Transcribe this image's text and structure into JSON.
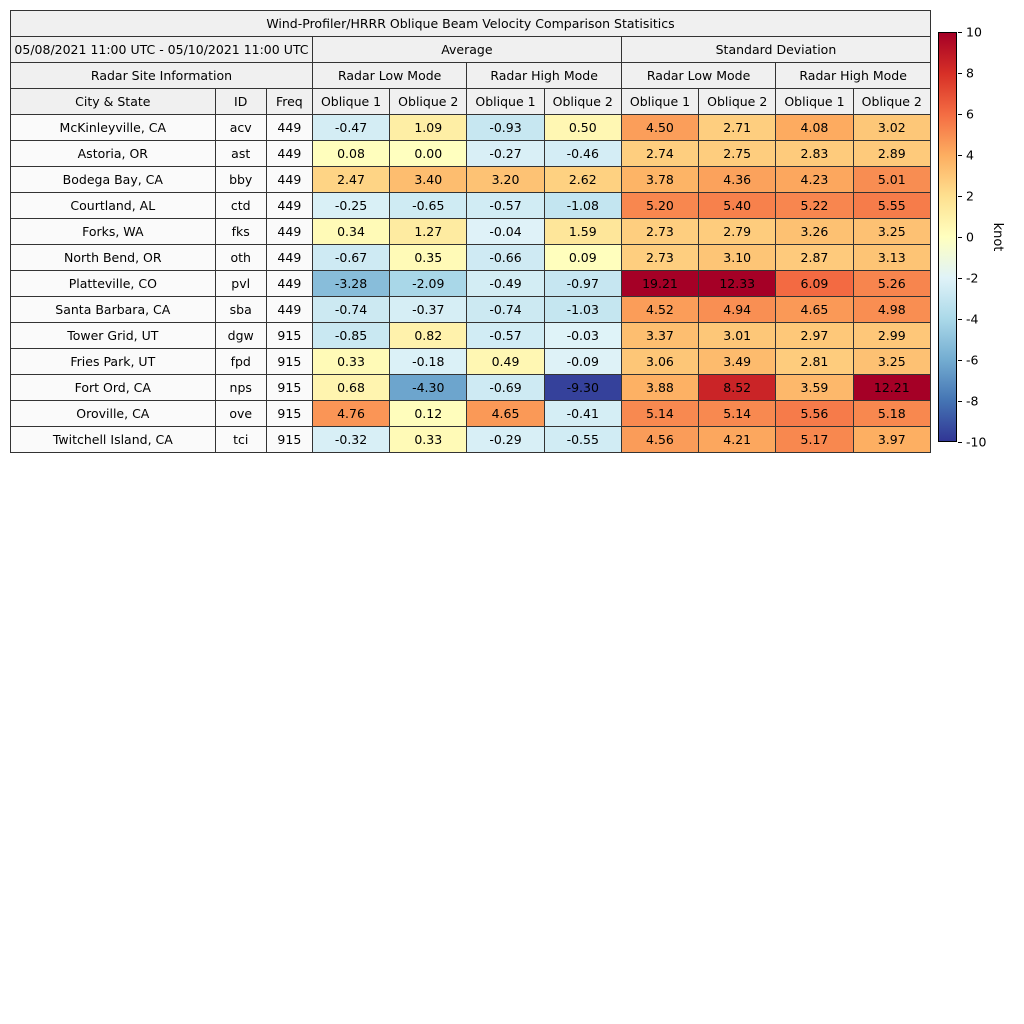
{
  "chart_data": {
    "type": "table",
    "title": "Wind-Profiler/HRRR Oblique Beam Velocity Comparison Statisitics",
    "period": "05/08/2021 11:00 UTC - 05/10/2021 11:00 UTC",
    "site_info_header": "Radar Site Information",
    "group_headers": [
      "Average",
      "Standard Deviation"
    ],
    "subgroup_headers": [
      "Radar Low Mode",
      "Radar High Mode",
      "Radar Low Mode",
      "Radar High Mode"
    ],
    "columns": [
      "City & State",
      "ID",
      "Freq",
      "Oblique 1",
      "Oblique 2",
      "Oblique 1",
      "Oblique 2",
      "Oblique 1",
      "Oblique 2",
      "Oblique 1",
      "Oblique 2"
    ],
    "rows": [
      {
        "city": "McKinleyville, CA",
        "id": "acv",
        "freq": "449",
        "values": [
          -0.47,
          1.09,
          -0.93,
          0.5,
          4.5,
          2.71,
          4.08,
          3.02
        ]
      },
      {
        "city": "Astoria, OR",
        "id": "ast",
        "freq": "449",
        "values": [
          0.08,
          0.0,
          -0.27,
          -0.46,
          2.74,
          2.75,
          2.83,
          2.89
        ]
      },
      {
        "city": "Bodega Bay, CA",
        "id": "bby",
        "freq": "449",
        "values": [
          2.47,
          3.4,
          3.2,
          2.62,
          3.78,
          4.36,
          4.23,
          5.01
        ]
      },
      {
        "city": "Courtland, AL",
        "id": "ctd",
        "freq": "449",
        "values": [
          -0.25,
          -0.65,
          -0.57,
          -1.08,
          5.2,
          5.4,
          5.22,
          5.55
        ]
      },
      {
        "city": "Forks, WA",
        "id": "fks",
        "freq": "449",
        "values": [
          0.34,
          1.27,
          -0.04,
          1.59,
          2.73,
          2.79,
          3.26,
          3.25
        ]
      },
      {
        "city": "North Bend, OR",
        "id": "oth",
        "freq": "449",
        "values": [
          -0.67,
          0.35,
          -0.66,
          0.09,
          2.73,
          3.1,
          2.87,
          3.13
        ]
      },
      {
        "city": "Platteville, CO",
        "id": "pvl",
        "freq": "449",
        "values": [
          -3.28,
          -2.09,
          -0.49,
          -0.97,
          19.21,
          12.33,
          6.09,
          5.26
        ]
      },
      {
        "city": "Santa Barbara, CA",
        "id": "sba",
        "freq": "449",
        "values": [
          -0.74,
          -0.37,
          -0.74,
          -1.03,
          4.52,
          4.94,
          4.65,
          4.98
        ]
      },
      {
        "city": "Tower Grid, UT",
        "id": "dgw",
        "freq": "915",
        "values": [
          -0.85,
          0.82,
          -0.57,
          -0.03,
          3.37,
          3.01,
          2.97,
          2.99
        ]
      },
      {
        "city": "Fries Park, UT",
        "id": "fpd",
        "freq": "915",
        "values": [
          0.33,
          -0.18,
          0.49,
          -0.09,
          3.06,
          3.49,
          2.81,
          3.25
        ]
      },
      {
        "city": "Fort Ord, CA",
        "id": "nps",
        "freq": "915",
        "values": [
          0.68,
          -4.3,
          -0.69,
          -9.3,
          3.88,
          8.52,
          3.59,
          12.21
        ]
      },
      {
        "city": "Oroville, CA",
        "id": "ove",
        "freq": "915",
        "values": [
          4.76,
          0.12,
          4.65,
          -0.41,
          5.14,
          5.14,
          5.56,
          5.18
        ]
      },
      {
        "city": "Twitchell Island, CA",
        "id": "tci",
        "freq": "915",
        "values": [
          -0.32,
          0.33,
          -0.29,
          -0.55,
          4.56,
          4.21,
          5.17,
          3.97
        ]
      }
    ],
    "colorbar": {
      "label": "knot",
      "min": -10,
      "max": 10,
      "ticks": [
        "10",
        "8",
        "6",
        "4",
        "2",
        "0",
        "-2",
        "-4",
        "-6",
        "-8",
        "-10"
      ],
      "gradient_top_to_bottom": [
        "#a50026",
        "#d73027",
        "#f46d43",
        "#fdae61",
        "#fee090",
        "#ffffbf",
        "#e0f3f8",
        "#abd9e9",
        "#74add1",
        "#4575b4",
        "#313695"
      ]
    },
    "colormap": {
      "name": "RdYlBu_r",
      "positive_stops_0_to_10": [
        "#ffffbf",
        "#fee090",
        "#fdae61",
        "#f46d43",
        "#d73027",
        "#a50026"
      ],
      "negative_stops_0_to_-10": [
        "#e0f3f8",
        "#abd9e9",
        "#74add1",
        "#4575b4",
        "#3b56a5",
        "#313695"
      ]
    }
  }
}
